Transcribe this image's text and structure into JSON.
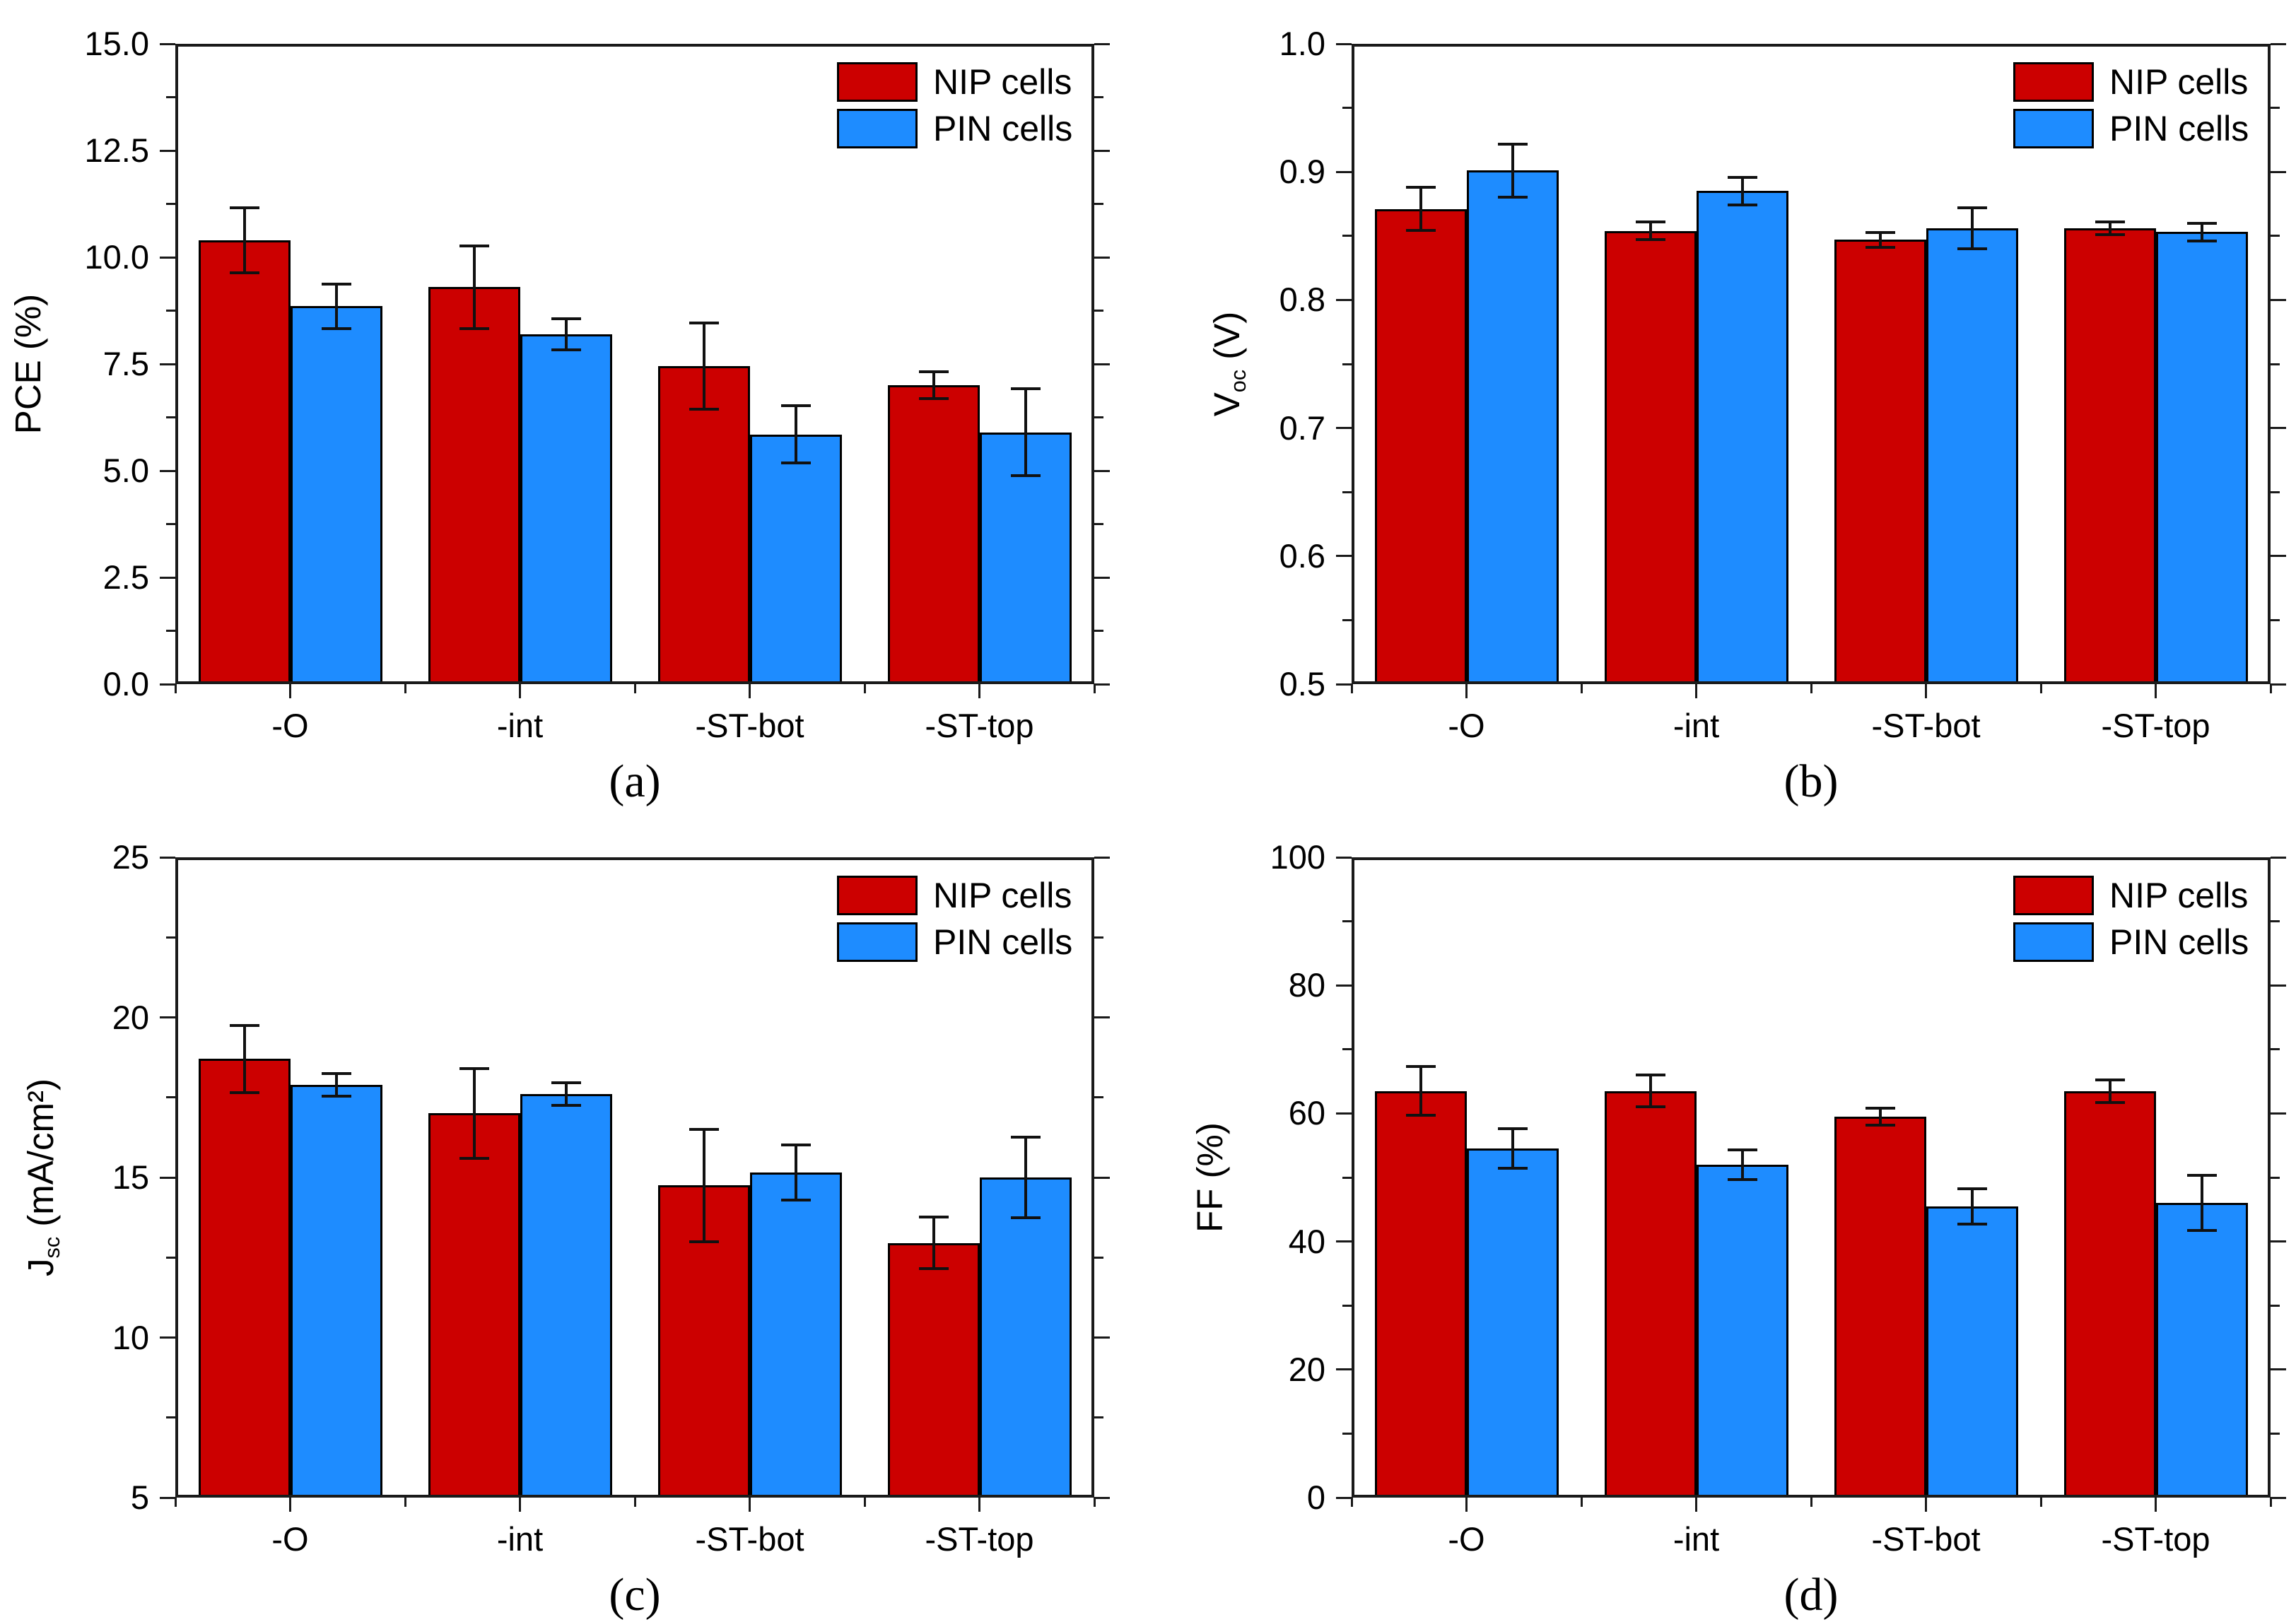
{
  "figure": {
    "background": "#ffffff",
    "description": "2x2 grid of grouped bar charts comparing NIP and PIN solar cells"
  },
  "colors": {
    "nip": "#cc0000",
    "pin": "#1e8cff",
    "bar_outline": "#000000",
    "axis": "#1a1a1a",
    "error_bar": "#111111",
    "text": "#000000"
  },
  "legend": {
    "position": "top-right",
    "items": [
      {
        "key": "nip",
        "label": "NIP cells"
      },
      {
        "key": "pin",
        "label": "PIN cells"
      }
    ]
  },
  "categories": [
    "-O",
    "-int",
    "-ST-bot",
    "-ST-top"
  ],
  "chart_data": [
    {
      "id": "a",
      "type": "bar",
      "caption": "(a)",
      "ylabel_main": "PCE",
      "ylabel_sub": "",
      "ylabel_unit": " (%)",
      "ylim": [
        0,
        15
      ],
      "ytick_values": [
        0,
        2.5,
        5,
        7.5,
        10,
        12.5,
        15
      ],
      "ytick_labels": [
        "0.0",
        "2.5",
        "5.0",
        "7.5",
        "10.0",
        "12.5",
        "15.0"
      ],
      "yminor_step": 1.25,
      "grid": false,
      "categories": [
        "-O",
        "-int",
        "-ST-bot",
        "-ST-top"
      ],
      "series": [
        {
          "name": "NIP cells",
          "color": "nip",
          "values": [
            10.4,
            9.3,
            7.45,
            7.0
          ],
          "errors": [
            0.8,
            1.0,
            1.05,
            0.35
          ]
        },
        {
          "name": "PIN cells",
          "color": "pin",
          "values": [
            8.85,
            8.2,
            5.85,
            5.9
          ],
          "errors": [
            0.55,
            0.4,
            0.7,
            1.05
          ]
        }
      ]
    },
    {
      "id": "b",
      "type": "bar",
      "caption": "(b)",
      "ylabel_main": "V",
      "ylabel_sub": "oc",
      "ylabel_unit": " (V)",
      "ylim": [
        0.5,
        1.0
      ],
      "ytick_values": [
        0.5,
        0.6,
        0.7,
        0.8,
        0.9,
        1.0
      ],
      "ytick_labels": [
        "0.5",
        "0.6",
        "0.7",
        "0.8",
        "0.9",
        "1.0"
      ],
      "yminor_step": 0.05,
      "grid": false,
      "categories": [
        "-O",
        "-int",
        "-ST-bot",
        "-ST-top"
      ],
      "series": [
        {
          "name": "NIP cells",
          "color": "nip",
          "values": [
            0.871,
            0.854,
            0.847,
            0.856
          ],
          "errors": [
            0.018,
            0.008,
            0.007,
            0.006
          ]
        },
        {
          "name": "PIN cells",
          "color": "pin",
          "values": [
            0.901,
            0.885,
            0.856,
            0.853
          ],
          "errors": [
            0.022,
            0.012,
            0.017,
            0.008
          ]
        }
      ]
    },
    {
      "id": "c",
      "type": "bar",
      "caption": "(c)",
      "ylabel_main": "J",
      "ylabel_sub": "sc",
      "ylabel_unit": " (mA/cm²)",
      "ylim": [
        5,
        25
      ],
      "ytick_values": [
        5,
        10,
        15,
        20,
        25
      ],
      "ytick_labels": [
        "5",
        "10",
        "15",
        "20",
        "25"
      ],
      "yminor_step": 2.5,
      "grid": false,
      "categories": [
        "-O",
        "-int",
        "-ST-bot",
        "-ST-top"
      ],
      "series": [
        {
          "name": "NIP cells",
          "color": "nip",
          "values": [
            18.7,
            17.0,
            14.75,
            12.95
          ],
          "errors": [
            1.1,
            1.45,
            1.8,
            0.85
          ]
        },
        {
          "name": "PIN cells",
          "color": "pin",
          "values": [
            17.9,
            17.6,
            15.15,
            15.0
          ],
          "errors": [
            0.4,
            0.4,
            0.9,
            1.3
          ]
        }
      ]
    },
    {
      "id": "d",
      "type": "bar",
      "caption": "(d)",
      "ylabel_main": "FF",
      "ylabel_sub": "",
      "ylabel_unit": " (%)",
      "ylim": [
        0,
        100
      ],
      "ytick_values": [
        0,
        20,
        40,
        60,
        80,
        100
      ],
      "ytick_labels": [
        "0",
        "20",
        "40",
        "60",
        "80",
        "100"
      ],
      "yminor_step": 10,
      "grid": false,
      "categories": [
        "-O",
        "-int",
        "-ST-bot",
        "-ST-top"
      ],
      "series": [
        {
          "name": "NIP cells",
          "color": "nip",
          "values": [
            63.5,
            63.5,
            59.5,
            63.5
          ],
          "errors": [
            4.0,
            2.7,
            1.5,
            2.0
          ]
        },
        {
          "name": "PIN cells",
          "color": "pin",
          "values": [
            54.5,
            52.0,
            45.5,
            46.0
          ],
          "errors": [
            3.3,
            2.5,
            3.0,
            4.5
          ]
        }
      ]
    }
  ]
}
